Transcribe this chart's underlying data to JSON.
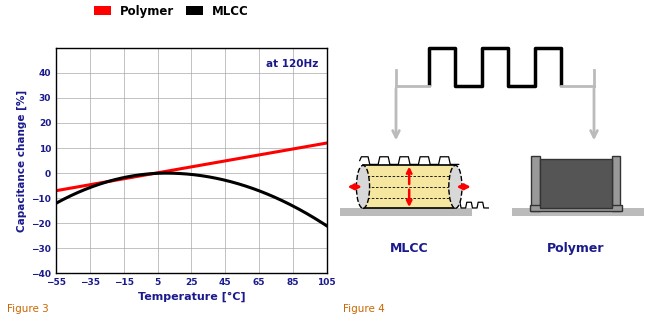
{
  "legend_polymer_color": "#ff0000",
  "legend_mlcc_color": "#000000",
  "legend_polymer_label": "Polymer",
  "legend_mlcc_label": "MLCC",
  "annotation": "at 120Hz",
  "xlabel": "Temperature [°C]",
  "ylabel": "Capacitance change [%]",
  "xlim": [
    -55,
    105
  ],
  "ylim": [
    -40,
    50
  ],
  "xticks": [
    -55,
    -35,
    -15,
    5,
    25,
    45,
    65,
    85,
    105
  ],
  "yticks": [
    -40,
    -30,
    -20,
    -10,
    0,
    10,
    20,
    30,
    40
  ],
  "grid_color": "#aaaaaa",
  "axis_label_color": "#1a1a8c",
  "tick_label_color": "#1a1a8c",
  "annotation_color": "#1a1a8c",
  "figure3_label": "Figure 3",
  "figure4_label": "Figure 4",
  "mlcc_label": "MLCC",
  "polymer_label": "Polymer",
  "label_color": "#1a1a8c",
  "figure_label_color": "#cc6600",
  "bg_color": "#ffffff",
  "gray_arrow": "#bbbbbb",
  "ground_gray": "#bbbbbb",
  "mlcc_fill": "#f5e6a0",
  "polymer_dark": "#555555",
  "polymer_mid": "#777777"
}
